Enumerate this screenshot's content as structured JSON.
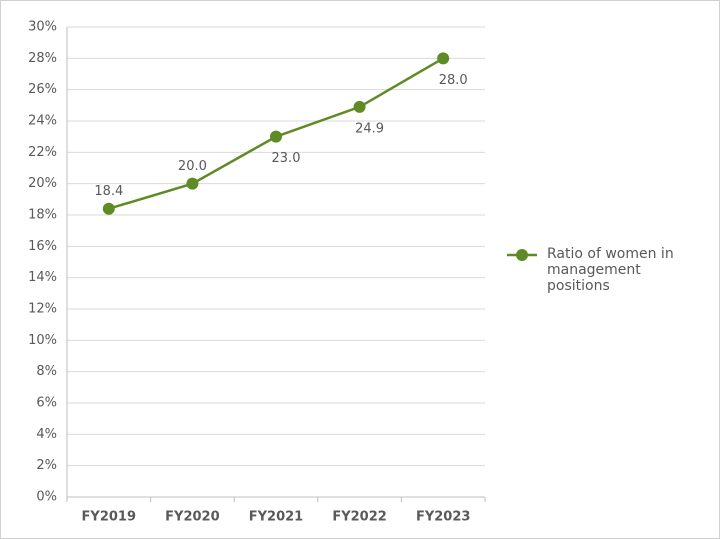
{
  "chart_data": {
    "type": "line",
    "categories": [
      "FY2019",
      "FY2020",
      "FY2021",
      "FY2022",
      "FY2023"
    ],
    "series": [
      {
        "name": "Ratio of women in management positions",
        "color": "#5f8b25",
        "values": [
          18.4,
          20.0,
          23.0,
          24.9,
          28.0
        ],
        "value_labels": [
          "18.4",
          "20.0",
          "23.0",
          "24.9",
          "28.0"
        ]
      }
    ],
    "ylim": [
      0,
      30
    ],
    "yticks": [
      {
        "value": 0,
        "label": "0%"
      },
      {
        "value": 2,
        "label": "2%"
      },
      {
        "value": 4,
        "label": "4%"
      },
      {
        "value": 6,
        "label": "6%"
      },
      {
        "value": 8,
        "label": "8%"
      },
      {
        "value": 10,
        "label": "10%"
      },
      {
        "value": 12,
        "label": "12%"
      },
      {
        "value": 14,
        "label": "14%"
      },
      {
        "value": 16,
        "label": "16%"
      },
      {
        "value": 18,
        "label": "18%"
      },
      {
        "value": 20,
        "label": "20%"
      },
      {
        "value": 22,
        "label": "22%"
      },
      {
        "value": 24,
        "label": "24%"
      },
      {
        "value": 26,
        "label": "26%"
      },
      {
        "value": 28,
        "label": "28%"
      },
      {
        "value": 30,
        "label": "30%"
      }
    ],
    "grid": true,
    "legend": "right"
  }
}
